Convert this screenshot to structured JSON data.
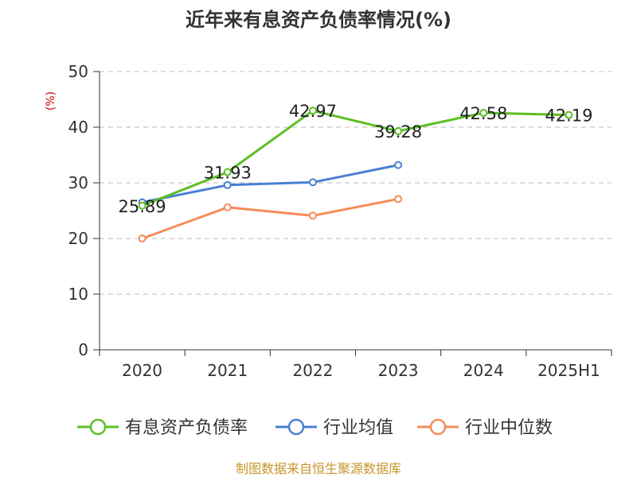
{
  "chart_data": {
    "type": "line",
    "title": "近年来有息资产负债率情况(%)",
    "ylabel": "(%)",
    "xlabel": "",
    "categories": [
      "2020",
      "2021",
      "2022",
      "2023",
      "2024",
      "2025H1"
    ],
    "ylim": [
      0,
      50
    ],
    "yticks": [
      0,
      10,
      20,
      30,
      40,
      50
    ],
    "grid": "horizontal-dashed",
    "legend_position": "bottom",
    "series": [
      {
        "name": "有息资产负债率",
        "color": "#5cbf26",
        "values": [
          25.89,
          31.93,
          42.97,
          39.28,
          42.58,
          42.19
        ],
        "labels": [
          "25.89",
          "31.93",
          "42.97",
          "39.28",
          "42.58",
          "42.19"
        ]
      },
      {
        "name": "行业均值",
        "color": "#4a7fd4",
        "values": [
          26.5,
          29.6,
          30.1,
          33.2,
          null,
          null
        ]
      },
      {
        "name": "行业中位数",
        "color": "#f58c5a",
        "values": [
          20.0,
          25.6,
          24.1,
          27.1,
          null,
          null
        ]
      }
    ],
    "source": "制图数据来自恒生聚源数据库"
  }
}
